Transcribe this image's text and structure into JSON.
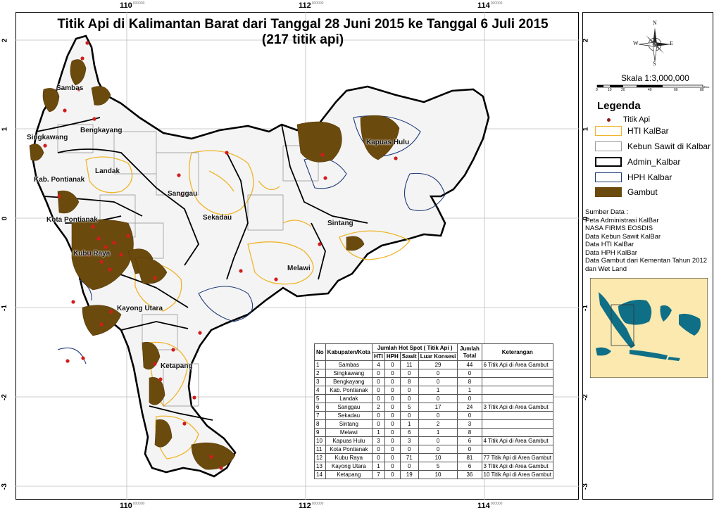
{
  "title": {
    "line1": "Titik Api di Kalimantan Barat dari Tanggal 28 Juni 2015 ke Tanggal 6 Juli 2015",
    "line2": "(217 titik api)"
  },
  "axes": {
    "x_ticks": [
      "110",
      "112",
      "114"
    ],
    "x_sup": "000000",
    "y_ticks": [
      "2",
      "1",
      "0",
      "-1",
      "-2",
      "-3"
    ]
  },
  "places": [
    "Sambas",
    "Bengkayang",
    "Singkawang",
    "Landak",
    "Kab. Pontianak",
    "Kota Pontianak",
    "Kubu Raya",
    "Sanggau",
    "Sekadau",
    "Sintang",
    "Melawi",
    "Kapuas Hulu",
    "Kayong Utara",
    "Ketapang"
  ],
  "compass": {
    "n": "N",
    "s": "S",
    "e": "E",
    "w": "W"
  },
  "scale": {
    "label": "Skala 1:3,000,000",
    "ticks": [
      "0",
      "10",
      "20",
      "40",
      "60",
      "80"
    ],
    "unit": "Miles"
  },
  "legend": {
    "title": "Legenda",
    "items": [
      {
        "label": "Titik Api",
        "type": "dot",
        "color": "#8b1a1a"
      },
      {
        "label": "HTI KalBar",
        "type": "box",
        "color": "#f0b429"
      },
      {
        "label": "Kebun Sawit di Kalbar",
        "type": "box",
        "color": "#9a9a9a"
      },
      {
        "label": "Admin_Kalbar",
        "type": "box",
        "color": "#000000"
      },
      {
        "label": "HPH Kalbar",
        "type": "box",
        "color": "#1f3a7a"
      },
      {
        "label": "Gambut",
        "type": "fill",
        "color": "#6b4a0e"
      }
    ]
  },
  "sources": [
    "Sumber Data :",
    "Peta Administrasi KalBar",
    "NASA FIRMS EOSDIS",
    "Data Kebun Sawit KalBar",
    "Data HTI KalBar",
    "Data HPH KalBar",
    "Data Gambut dari Kementan Tahun 2012",
    "dan Wet Land"
  ],
  "table": {
    "headers": {
      "no": "No",
      "kab": "Kabupaten/Kota",
      "group": "Jumlah Hot Spot ( Titik Api )",
      "hti": "HTI",
      "hph": "HPH",
      "sawit": "Sawit",
      "luar": "Luar Konsesi",
      "total": "Jumlah Total",
      "ket": "Keterangan"
    },
    "rows": [
      [
        "1",
        "Sambas",
        "4",
        "0",
        "11",
        "29",
        "44",
        "6 Titik Api di Area Gambut"
      ],
      [
        "2",
        "Singkawang",
        "0",
        "0",
        "0",
        "0",
        "0",
        ""
      ],
      [
        "3",
        "Bengkayang",
        "0",
        "0",
        "8",
        "0",
        "8",
        ""
      ],
      [
        "4",
        "Kab. Pontianak",
        "0",
        "0",
        "0",
        "1",
        "1",
        ""
      ],
      [
        "5",
        "Landak",
        "0",
        "0",
        "0",
        "0",
        "0",
        ""
      ],
      [
        "6",
        "Sanggau",
        "2",
        "0",
        "5",
        "17",
        "24",
        "3 Titik Api di Area Gambut"
      ],
      [
        "7",
        "Sekadau",
        "0",
        "0",
        "0",
        "0",
        "0",
        ""
      ],
      [
        "8",
        "Sintang",
        "0",
        "0",
        "1",
        "2",
        "3",
        ""
      ],
      [
        "9",
        "Melawi",
        "1",
        "0",
        "6",
        "1",
        "8",
        ""
      ],
      [
        "10",
        "Kapuas Hulu",
        "3",
        "0",
        "3",
        "0",
        "6",
        "4 Titik Api di Area Gambut"
      ],
      [
        "11",
        "Kota Pontianak",
        "0",
        "0",
        "0",
        "0",
        "0",
        ""
      ],
      [
        "12",
        "Kubu Raya",
        "0",
        "0",
        "71",
        "10",
        "81",
        "77 Titik Api di Area Gambut"
      ],
      [
        "13",
        "Kayong Utara",
        "1",
        "0",
        "0",
        "5",
        "6",
        "3 Titik Api di Area Gambut"
      ],
      [
        "14",
        "Ketapang",
        "7",
        "0",
        "19",
        "10",
        "36",
        "10 Titik Api di Area Gambut"
      ]
    ]
  }
}
